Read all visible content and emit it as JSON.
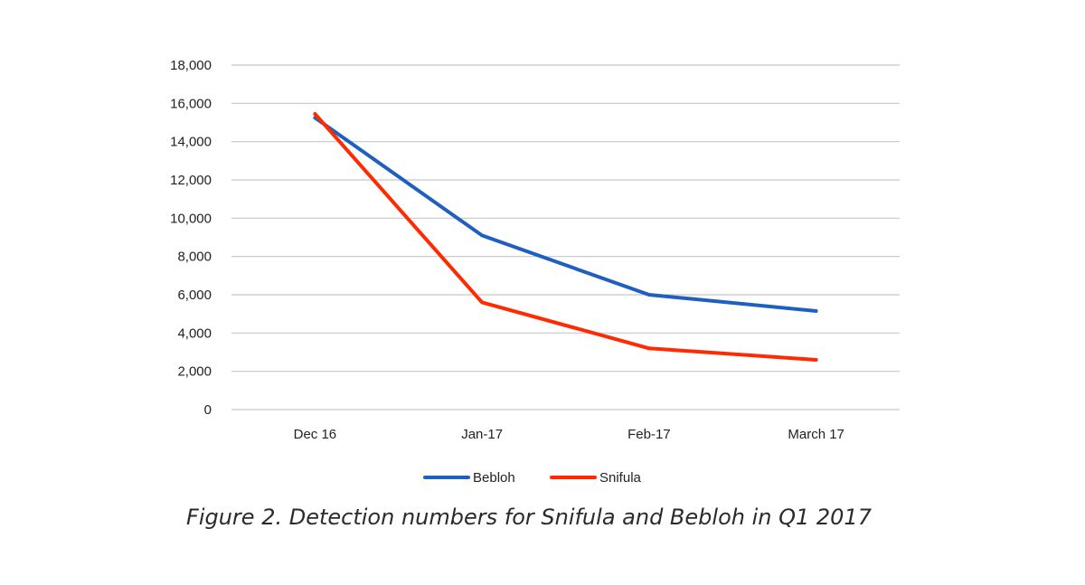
{
  "chart_data": {
    "type": "line",
    "categories": [
      "Dec 16",
      "Jan-17",
      "Feb-17",
      "March 17"
    ],
    "series": [
      {
        "name": "Bebloh",
        "color": "#1f5fbf",
        "values": [
          15250,
          9100,
          6000,
          5150
        ]
      },
      {
        "name": "Snifula",
        "color": "#ff2a00",
        "values": [
          15450,
          5600,
          3200,
          2600
        ]
      }
    ],
    "ylim": [
      0,
      18000
    ],
    "yticks": [
      "0",
      "2,000",
      "4,000",
      "6,000",
      "8,000",
      "10,000",
      "12,000",
      "14,000",
      "16,000",
      "18,000"
    ],
    "grid": true,
    "legend_position": "bottom"
  },
  "caption": "Figure 2. Detection numbers for Snifula and Bebloh in Q1 2017"
}
